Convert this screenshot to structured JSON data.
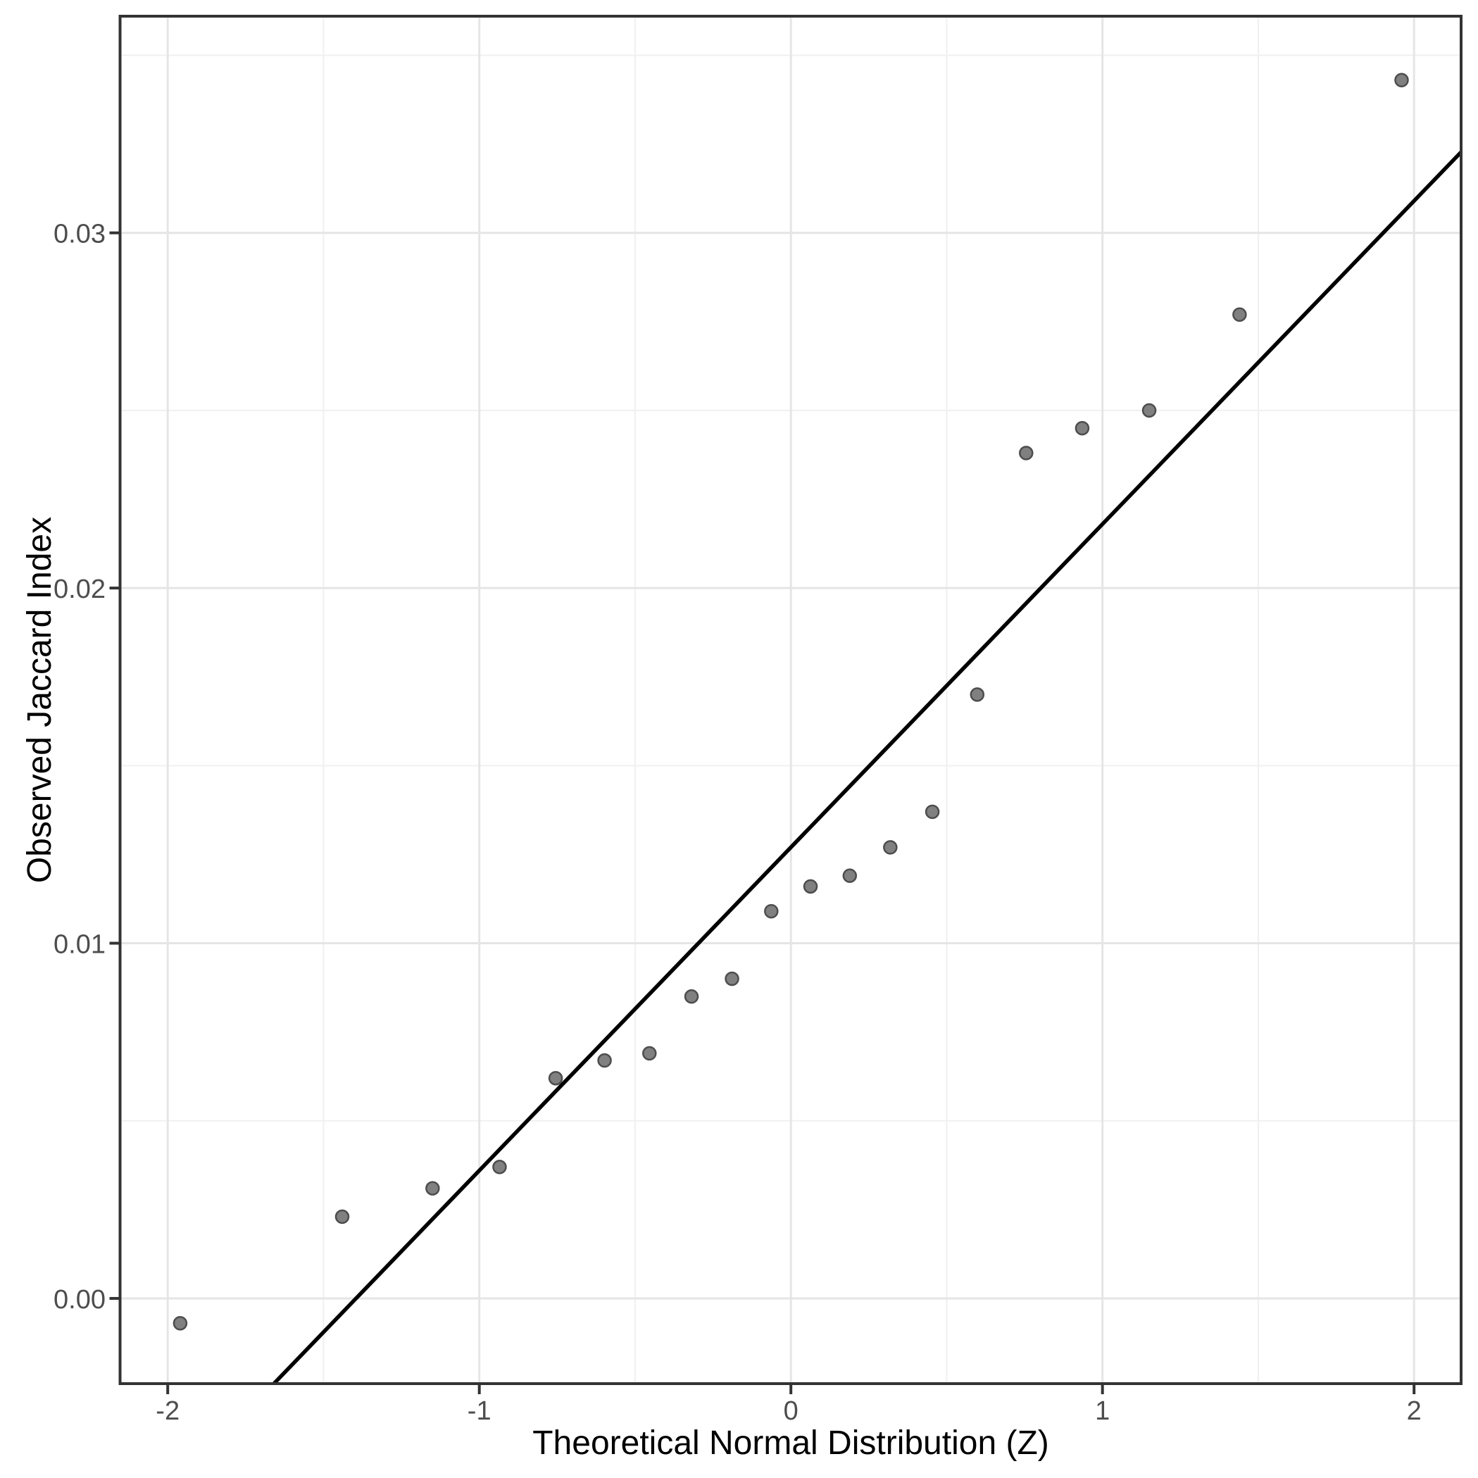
{
  "chart_data": {
    "type": "scatter",
    "title": "",
    "xlabel": "Theoretical Normal Distribution (Z)",
    "ylabel": "Observed Jaccard Index",
    "legend_position": "none",
    "grid": "on",
    "n_points": 20,
    "xlim": [
      -2.153,
      2.151
    ],
    "ylim": [
      -0.0024,
      0.0361
    ],
    "x_ticks": {
      "values": [
        -2,
        -1,
        0,
        1,
        2
      ],
      "labels": [
        "-2",
        "-1",
        "0",
        "1",
        "2"
      ]
    },
    "y_ticks": {
      "values": [
        0.0,
        0.01,
        0.02,
        0.03
      ],
      "labels": [
        "0.00",
        "0.01",
        "0.02",
        "0.03"
      ]
    },
    "x_minor": [
      -1.5,
      -0.5,
      0.5,
      1.5
    ],
    "y_minor": [
      0.005,
      0.015,
      0.025,
      0.035
    ],
    "points": [
      {
        "z": -1.96,
        "jaccard": -0.0007
      },
      {
        "z": -1.44,
        "jaccard": 0.0023
      },
      {
        "z": -1.15,
        "jaccard": 0.0031
      },
      {
        "z": -0.935,
        "jaccard": 0.0037
      },
      {
        "z": -0.755,
        "jaccard": 0.0062
      },
      {
        "z": -0.598,
        "jaccard": 0.0067
      },
      {
        "z": -0.454,
        "jaccard": 0.0069
      },
      {
        "z": -0.319,
        "jaccard": 0.0085
      },
      {
        "z": -0.189,
        "jaccard": 0.009
      },
      {
        "z": -0.063,
        "jaccard": 0.0109
      },
      {
        "z": 0.063,
        "jaccard": 0.0116
      },
      {
        "z": 0.189,
        "jaccard": 0.0119
      },
      {
        "z": 0.319,
        "jaccard": 0.0127
      },
      {
        "z": 0.454,
        "jaccard": 0.0137
      },
      {
        "z": 0.598,
        "jaccard": 0.017
      },
      {
        "z": 0.755,
        "jaccard": 0.0238
      },
      {
        "z": 0.935,
        "jaccard": 0.0245
      },
      {
        "z": 1.15,
        "jaccard": 0.025
      },
      {
        "z": 1.44,
        "jaccard": 0.0277
      },
      {
        "z": 1.96,
        "jaccard": 0.0343
      }
    ],
    "qq_line": {
      "intercept": 0.0127,
      "slope": 0.0091
    },
    "colors": {
      "background": "#FFFFFF",
      "panel_border": "#333333",
      "grid_major": "#E5E5E5",
      "grid_minor": "#F0F0F0",
      "tick_mark": "#333333",
      "tick_label": "#4D4D4D",
      "axis_title": "#000000",
      "point_fill": "#808080",
      "point_stroke": "#4D4D4D",
      "qq_line_color": "#000000"
    }
  }
}
